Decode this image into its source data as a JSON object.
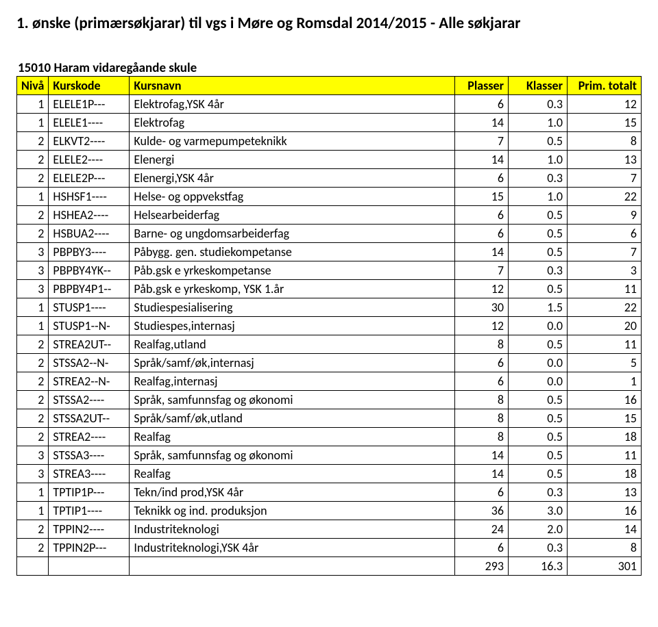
{
  "title": "1. ønske (primærsøkjarar) til vgs i Møre og Romsdal 2014/2015 - Alle søkjarar",
  "subtitle": "15010 Haram vidaregåande skule",
  "header": {
    "niva": "Nivå",
    "kurskode": "Kurskode",
    "kursnavn": "Kursnavn",
    "plasser": "Plasser",
    "klasser": "Klasser",
    "prim": "Prim. totalt"
  },
  "rows": [
    {
      "niva": "1",
      "kurskode": "ELELE1P---",
      "kursnavn": "Elektrofag,YSK 4år",
      "plasser": "6",
      "klasser": "0.3",
      "prim": "12"
    },
    {
      "niva": "1",
      "kurskode": "ELELE1----",
      "kursnavn": "Elektrofag",
      "plasser": "14",
      "klasser": "1.0",
      "prim": "15"
    },
    {
      "niva": "2",
      "kurskode": "ELKVT2----",
      "kursnavn": "Kulde- og varmepumpeteknikk",
      "plasser": "7",
      "klasser": "0.5",
      "prim": "8"
    },
    {
      "niva": "2",
      "kurskode": "ELELE2----",
      "kursnavn": "Elenergi",
      "plasser": "14",
      "klasser": "1.0",
      "prim": "13"
    },
    {
      "niva": "2",
      "kurskode": "ELELE2P---",
      "kursnavn": "Elenergi,YSK 4år",
      "plasser": "6",
      "klasser": "0.3",
      "prim": "7"
    },
    {
      "niva": "1",
      "kurskode": "HSHSF1----",
      "kursnavn": "Helse- og oppvekstfag",
      "plasser": "15",
      "klasser": "1.0",
      "prim": "22"
    },
    {
      "niva": "2",
      "kurskode": "HSHEA2----",
      "kursnavn": "Helsearbeiderfag",
      "plasser": "6",
      "klasser": "0.5",
      "prim": "9"
    },
    {
      "niva": "2",
      "kurskode": "HSBUA2----",
      "kursnavn": "Barne- og ungdomsarbeiderfag",
      "plasser": "6",
      "klasser": "0.5",
      "prim": "6"
    },
    {
      "niva": "3",
      "kurskode": "PBPBY3----",
      "kursnavn": "Påbygg. gen. studiekompetanse",
      "plasser": "14",
      "klasser": "0.5",
      "prim": "7"
    },
    {
      "niva": "3",
      "kurskode": "PBPBY4YK--",
      "kursnavn": "Påb.gsk e yrkeskompetanse",
      "plasser": "7",
      "klasser": "0.3",
      "prim": "3"
    },
    {
      "niva": "3",
      "kurskode": "PBPBY4P1--",
      "kursnavn": "Påb.gsk e yrkeskomp, YSK 1.år",
      "plasser": "12",
      "klasser": "0.5",
      "prim": "11"
    },
    {
      "niva": "1",
      "kurskode": "STUSP1----",
      "kursnavn": "Studiespesialisering",
      "plasser": "30",
      "klasser": "1.5",
      "prim": "22"
    },
    {
      "niva": "1",
      "kurskode": "STUSP1--N-",
      "kursnavn": "Studiespes,internasj",
      "plasser": "12",
      "klasser": "0.0",
      "prim": "20"
    },
    {
      "niva": "2",
      "kurskode": "STREA2UT--",
      "kursnavn": "Realfag,utland",
      "plasser": "8",
      "klasser": "0.5",
      "prim": "11"
    },
    {
      "niva": "2",
      "kurskode": "STSSA2--N-",
      "kursnavn": "Språk/samf/øk,internasj",
      "plasser": "6",
      "klasser": "0.0",
      "prim": "5"
    },
    {
      "niva": "2",
      "kurskode": "STREA2--N-",
      "kursnavn": "Realfag,internasj",
      "plasser": "6",
      "klasser": "0.0",
      "prim": "1"
    },
    {
      "niva": "2",
      "kurskode": "STSSA2----",
      "kursnavn": "Språk, samfunnsfag og økonomi",
      "plasser": "8",
      "klasser": "0.5",
      "prim": "16"
    },
    {
      "niva": "2",
      "kurskode": "STSSA2UT--",
      "kursnavn": "Språk/samf/øk,utland",
      "plasser": "8",
      "klasser": "0.5",
      "prim": "15"
    },
    {
      "niva": "2",
      "kurskode": "STREA2----",
      "kursnavn": "Realfag",
      "plasser": "8",
      "klasser": "0.5",
      "prim": "18"
    },
    {
      "niva": "3",
      "kurskode": "STSSA3----",
      "kursnavn": "Språk, samfunnsfag og økonomi",
      "plasser": "14",
      "klasser": "0.5",
      "prim": "11"
    },
    {
      "niva": "3",
      "kurskode": "STREA3----",
      "kursnavn": "Realfag",
      "plasser": "14",
      "klasser": "0.5",
      "prim": "18"
    },
    {
      "niva": "1",
      "kurskode": "TPTIP1P---",
      "kursnavn": "Tekn/ind prod,YSK 4år",
      "plasser": "6",
      "klasser": "0.3",
      "prim": "13"
    },
    {
      "niva": "1",
      "kurskode": "TPTIP1----",
      "kursnavn": "Teknikk og ind. produksjon",
      "plasser": "36",
      "klasser": "3.0",
      "prim": "16"
    },
    {
      "niva": "2",
      "kurskode": "TPPIN2----",
      "kursnavn": "Industriteknologi",
      "plasser": "24",
      "klasser": "2.0",
      "prim": "14"
    },
    {
      "niva": "2",
      "kurskode": "TPPIN2P---",
      "kursnavn": "Industriteknologi,YSK 4år",
      "plasser": "6",
      "klasser": "0.3",
      "prim": "8"
    }
  ],
  "totals": {
    "plasser": "293",
    "klasser": "16.3",
    "prim": "301"
  },
  "styling": {
    "header_bg": "#ffff00",
    "border_color": "#000000",
    "font_family": "Calibri",
    "title_fontsize": 23,
    "body_fontsize": 18
  }
}
